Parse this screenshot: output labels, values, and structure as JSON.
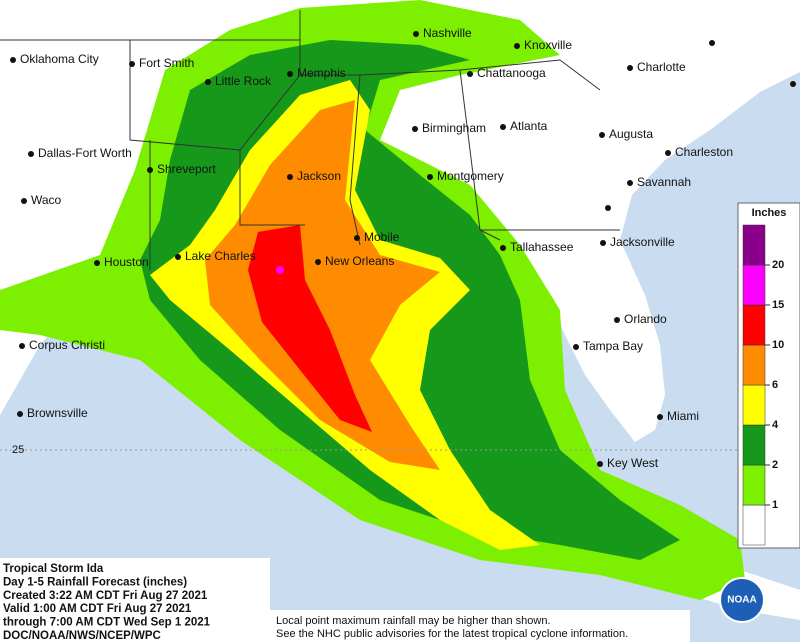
{
  "map": {
    "cities": [
      "Oklahoma City",
      "Fort Smith",
      "Little Rock",
      "Memphis",
      "Nashville",
      "Knoxville",
      "Chattanooga",
      "Charlotte",
      "Birmingham",
      "Atlanta",
      "Augusta",
      "Charleston",
      "Dallas-Fort Worth",
      "Shreveport",
      "Jackson",
      "Montgomery",
      "Savannah",
      "Waco",
      "Mobile",
      "Tallahassee",
      "Jacksonville",
      "Houston",
      "Lake Charles",
      "New Orleans",
      "Orlando",
      "Tampa Bay",
      "Corpus Christi",
      "Brownsville",
      "Miami",
      "Key West"
    ],
    "latitude_label": "25"
  },
  "legend": {
    "title": "Inches",
    "ticks": [
      1,
      2,
      4,
      6,
      10,
      15,
      20
    ],
    "colors": [
      "#ffffff",
      "#7cf000",
      "#16991a",
      "#ffff00",
      "#ff8c00",
      "#ff0000",
      "#ff00ff",
      "#8b008b"
    ]
  },
  "info": {
    "lines": [
      "Tropical Storm Ida",
      "Day 1-5 Rainfall Forecast (inches)",
      "Created 3:22 AM CDT Fri Aug 27 2021",
      "Valid 1:00 AM CDT Fri Aug 27 2021",
      "through 7:00 AM CDT Wed Sep 1 2021",
      "DOC/NOAA/NWS/NCEP/WPC"
    ]
  },
  "note": {
    "lines": [
      "Local point maximum rainfall may be higher than shown.",
      "See the NHC public advisories for the latest tropical cyclone information."
    ]
  },
  "logo": {
    "text": "NOAA"
  }
}
